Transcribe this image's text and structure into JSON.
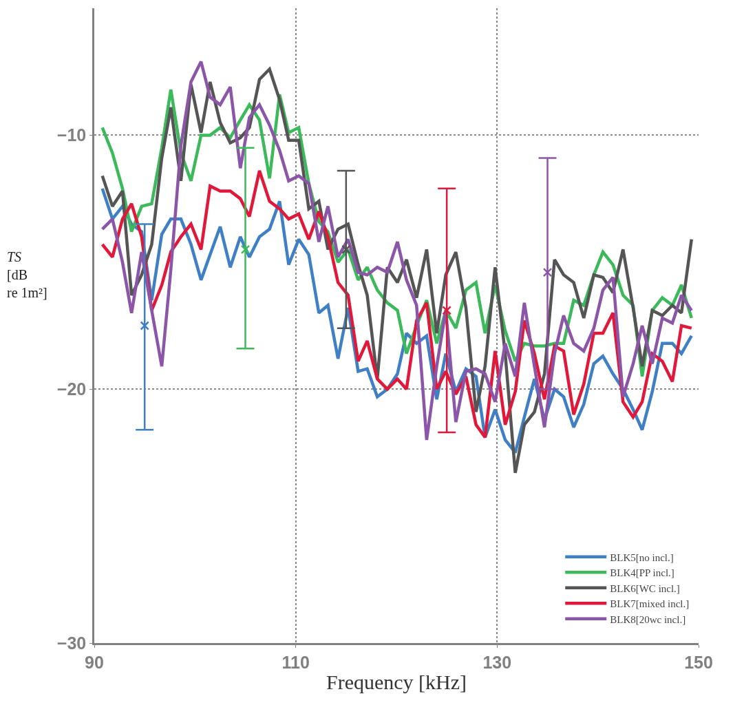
{
  "chart_data": {
    "type": "line",
    "xlabel": "Frequency [kHz]",
    "ylabel": "TS [dB re 1m²]",
    "xlim": [
      90,
      150
    ],
    "ylim": [
      -30,
      -5
    ],
    "xticks": [
      90,
      110,
      130,
      150
    ],
    "yticks": [
      -30,
      -20,
      -10
    ],
    "grid": true,
    "legend": "bottom right",
    "line_style": "solid",
    "x": [
      90.8,
      91.8,
      92.8,
      93.7,
      94.7,
      95.7,
      96.7,
      97.6,
      98.6,
      99.6,
      100.6,
      101.5,
      102.5,
      103.5,
      104.5,
      105.4,
      106.4,
      107.4,
      108.4,
      109.3,
      110.3,
      111.3,
      112.3,
      113.2,
      114.2,
      115.2,
      116.2,
      117.1,
      118.1,
      119.1,
      120.1,
      121.0,
      122.0,
      123.0,
      124.0,
      124.9,
      125.9,
      126.9,
      127.9,
      128.8,
      129.8,
      130.8,
      131.8,
      132.7,
      133.7,
      134.7,
      135.7,
      136.6,
      137.6,
      138.6,
      139.6,
      140.5,
      141.5,
      142.5,
      143.5,
      144.4,
      145.4,
      146.4,
      147.4,
      148.3,
      149.3
    ],
    "series": [
      {
        "name": "BLK5[no incl.]",
        "color": "#3f7fc4",
        "values": [
          -12.1,
          -13.3,
          -12.8,
          -13.5,
          -13.8,
          -16.5,
          -13.9,
          -13.3,
          -13.3,
          -14.3,
          -15.7,
          -14.7,
          -13.6,
          -15.2,
          -14.0,
          -14.8,
          -14.0,
          -13.7,
          -12.6,
          -15.1,
          -14.1,
          -14.7,
          -17.0,
          -16.7,
          -18.8,
          -16.8,
          -19.3,
          -19.2,
          -20.3,
          -20.0,
          -19.4,
          -17.8,
          -18.2,
          -17.9,
          -20.4,
          -18.6,
          -20.1,
          -19.2,
          -19.5,
          -21.9,
          -20.8,
          -22.0,
          -22.5,
          -21.1,
          -19.6,
          -21.2,
          -20.0,
          -20.3,
          -21.5,
          -20.6,
          -19.0,
          -18.7,
          -19.4,
          -20.0,
          -20.8,
          -21.6,
          -20.1,
          -18.2,
          -18.2,
          -18.6,
          -17.9
        ]
      },
      {
        "name": "BLK4[PP incl.]",
        "color": "#3cb95a",
        "values": [
          -9.7,
          -10.7,
          -12.1,
          -13.8,
          -12.8,
          -12.7,
          -10.5,
          -8.2,
          -10.7,
          -11.8,
          -10.0,
          -10.0,
          -9.7,
          -10.1,
          -9.4,
          -8.8,
          -9.4,
          -11.7,
          -8.4,
          -9.9,
          -9.7,
          -11.9,
          -13.4,
          -13.8,
          -15.0,
          -14.5,
          -15.7,
          -15.2,
          -16.1,
          -16.6,
          -16.9,
          -18.6,
          -17.5,
          -16.5,
          -18.2,
          -16.9,
          -17.6,
          -16.1,
          -15.8,
          -17.8,
          -15.9,
          -17.7,
          -18.9,
          -18.2,
          -18.3,
          -18.3,
          -18.2,
          -18.2,
          -16.5,
          -16.7,
          -15.5,
          -14.6,
          -15.1,
          -16.3,
          -16.7,
          -19.5,
          -16.9,
          -16.4,
          -16.7,
          -15.9,
          -17.2
        ]
      },
      {
        "name": "BLK6[WC incl.]",
        "color": "#555555",
        "values": [
          -11.6,
          -12.8,
          -12.2,
          -16.3,
          -15.5,
          -14.3,
          -10.9,
          -8.9,
          -11.8,
          -8.0,
          -9.9,
          -7.9,
          -9.5,
          -10.3,
          -10.1,
          -9.7,
          -7.8,
          -7.4,
          -8.6,
          -10.2,
          -10.2,
          -12.9,
          -12.6,
          -14.5,
          -13.7,
          -13.5,
          -15.1,
          -16.3,
          -19.6,
          -15.2,
          -15.8,
          -14.9,
          -16.4,
          -14.5,
          -17.8,
          -15.5,
          -14.6,
          -16.8,
          -20.9,
          -19.1,
          -15.2,
          -18.6,
          -23.3,
          -21.4,
          -20.9,
          -19.4,
          -14.9,
          -15.5,
          -15.8,
          -17.2,
          -15.5,
          -15.6,
          -16.2,
          -14.5,
          -16.8,
          -19.1,
          -16.9,
          -17.1,
          -16.7,
          -17.0,
          -14.1
        ]
      },
      {
        "name": "BLK7[mixed incl.]",
        "color": "#e0193b",
        "values": [
          -14.3,
          -14.8,
          -13.3,
          -12.7,
          -14.0,
          -16.9,
          -15.9,
          -14.6,
          -14.0,
          -13.5,
          -14.5,
          -12.0,
          -12.2,
          -12.2,
          -12.5,
          -13.2,
          -11.4,
          -12.6,
          -12.9,
          -13.3,
          -13.1,
          -14.1,
          -13.0,
          -14.0,
          -15.8,
          -16.3,
          -18.9,
          -18.1,
          -19.6,
          -20.0,
          -19.6,
          -20.0,
          -17.3,
          -16.6,
          -20.0,
          -19.3,
          -20.2,
          -19.5,
          -21.4,
          -21.9,
          -18.5,
          -21.4,
          -20.1,
          -17.3,
          -18.6,
          -20.4,
          -18.3,
          -18.5,
          -21.0,
          -19.8,
          -17.8,
          -17.8,
          -17.0,
          -20.5,
          -21.1,
          -20.5,
          -18.6,
          -18.9,
          -19.7,
          -17.5,
          -17.6
        ]
      },
      {
        "name": "BLK8[20wc incl.]",
        "color": "#8b55a8",
        "values": [
          -13.7,
          -13.3,
          -15.0,
          -17.0,
          -14.6,
          -16.9,
          -19.1,
          -15.3,
          -10.4,
          -7.9,
          -7.1,
          -8.5,
          -8.8,
          -8.1,
          -11.3,
          -9.3,
          -8.8,
          -9.6,
          -10.6,
          -11.8,
          -11.6,
          -11.9,
          -14.2,
          -12.8,
          -14.8,
          -14.1,
          -15.4,
          -15.5,
          -15.2,
          -15.4,
          -14.2,
          -15.7,
          -16.7,
          -22.0,
          -19.1,
          -16.9,
          -21.3,
          -19.3,
          -19.2,
          -19.4,
          -20.5,
          -18.2,
          -19.5,
          -16.6,
          -19.1,
          -21.5,
          -18.6,
          -17.1,
          -18.2,
          -18.5,
          -17.6,
          -16.1,
          -15.6,
          -20.3,
          -19.0,
          -17.5,
          -19.0,
          -17.2,
          -17.4,
          -16.3,
          -16.9
        ]
      },
      {
        "type": "scatter",
        "marker": "cross",
        "color": "#3f7fc4",
        "x": [
          95
        ],
        "values": [
          -17.5
        ],
        "errors": [
          [
            -21.6,
            -13.5
          ]
        ]
      },
      {
        "type": "scatter",
        "marker": "cross",
        "color": "#3cb95a",
        "x": [
          105
        ],
        "values": [
          -14.5
        ],
        "errors": [
          [
            -18.4,
            -10.5
          ]
        ]
      },
      {
        "type": "scatter",
        "marker": "cross",
        "color": "#555555",
        "x": [
          115
        ],
        "values": [
          -14.5
        ],
        "errors": [
          [
            -17.6,
            -11.4
          ]
        ]
      },
      {
        "type": "scatter",
        "marker": "cross",
        "color": "#e0193b",
        "x": [
          125
        ],
        "values": [
          -16.9
        ],
        "errors": [
          [
            -21.7,
            -12.1
          ]
        ]
      },
      {
        "type": "scatter",
        "marker": "cross",
        "color": "#8b55a8",
        "x": [
          135
        ],
        "values": [
          -15.4
        ],
        "errors": [
          [
            -20.0,
            -10.9
          ]
        ]
      }
    ]
  }
}
